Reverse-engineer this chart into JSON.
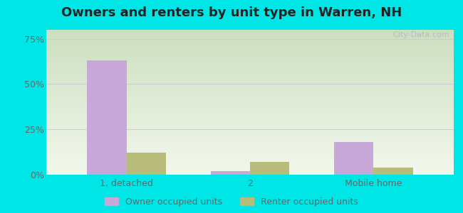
{
  "title": "Owners and renters by unit type in Warren, NH",
  "categories": [
    "1, detached",
    "2",
    "Mobile home"
  ],
  "owner_values": [
    63.0,
    2.0,
    18.0
  ],
  "renter_values": [
    12.0,
    7.0,
    4.0
  ],
  "owner_color": "#c8a8d8",
  "renter_color": "#b8bc7a",
  "background_color": "#00e5e5",
  "grad_top": "#ccdfc0",
  "grad_bottom": "#f2f7ec",
  "title_fontsize": 13,
  "axis_label_fontsize": 9,
  "legend_fontsize": 9,
  "yticks": [
    0,
    25,
    50,
    75
  ],
  "ylim": [
    0,
    80
  ],
  "bar_width": 0.32,
  "watermark": "City-Data.com"
}
